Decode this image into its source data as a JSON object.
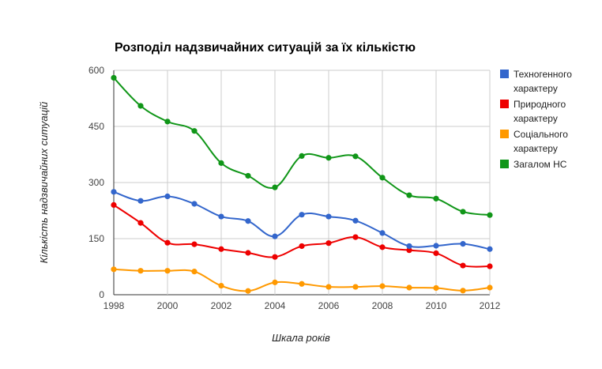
{
  "chart_data": {
    "type": "line",
    "title": "Розподіл надзвичайних ситуацій за їх кількістю",
    "xlabel": "Шкала років",
    "ylabel": "Кількість надзвичайних ситуацій",
    "x": [
      1998,
      1999,
      2000,
      2001,
      2002,
      2003,
      2004,
      2005,
      2006,
      2007,
      2008,
      2009,
      2010,
      2011,
      2012
    ],
    "x_ticks": [
      "1998",
      "2000",
      "2002",
      "2004",
      "2006",
      "2008",
      "2010",
      "2012"
    ],
    "xlim": [
      1998,
      2012
    ],
    "ylim": [
      0,
      600
    ],
    "y_ticks": [
      "0",
      "150",
      "300",
      "450",
      "600"
    ],
    "grid": true,
    "legend_position": "right",
    "series": [
      {
        "name": "Техногенного характеру",
        "legend_lines": [
          "Техногенного",
          "характеру"
        ],
        "color": "#3366cc",
        "values": [
          275,
          251,
          263,
          243,
          209,
          197,
          156,
          214,
          209,
          198,
          165,
          130,
          131,
          136,
          122
        ]
      },
      {
        "name": "Природного характеру",
        "legend_lines": [
          "Природного",
          "характеру"
        ],
        "color": "#ee0000",
        "values": [
          240,
          192,
          139,
          135,
          122,
          112,
          101,
          130,
          138,
          154,
          127,
          119,
          111,
          78,
          76
        ]
      },
      {
        "name": "Соціального характеру",
        "legend_lines": [
          "Соціального",
          "характеру"
        ],
        "color": "#ff9900",
        "values": [
          68,
          64,
          64,
          62,
          24,
          10,
          33,
          29,
          21,
          21,
          23,
          19,
          18,
          11,
          19
        ]
      },
      {
        "name": "Загалом НС",
        "legend_lines": [
          "Загалом НС"
        ],
        "color": "#109618",
        "values": [
          580,
          505,
          463,
          438,
          352,
          318,
          287,
          371,
          366,
          370,
          313,
          266,
          257,
          222,
          213
        ]
      }
    ]
  }
}
